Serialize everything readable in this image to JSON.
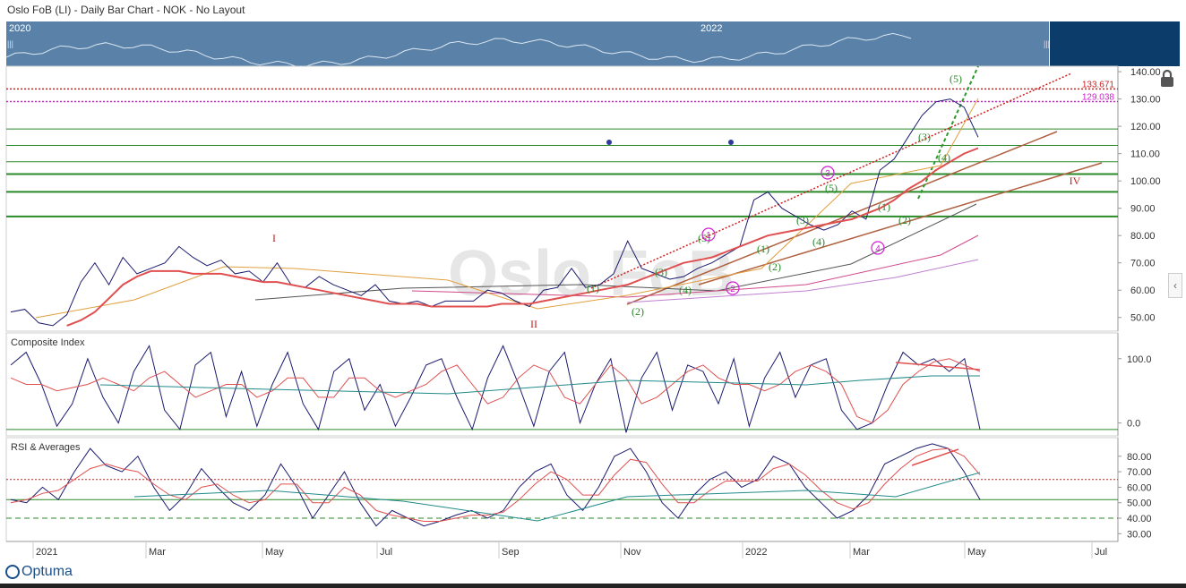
{
  "title": "Oslo FoB (LI) - Daily Bar Chart - NOK - No Layout",
  "navigator": {
    "labels": [
      "2020",
      "2022"
    ]
  },
  "watermark": "Oslo FoB",
  "logo": "Optuma",
  "colors": {
    "price": "#1a1a6e",
    "ma_red": "#e05050",
    "green_line": "#2a8a2a",
    "red_dotted": "#d02020",
    "magenta": "#d020d0",
    "brown": "#b06040"
  },
  "chart_data": [
    {
      "type": "line",
      "panel": "price",
      "ylim": [
        45,
        142
      ],
      "yticks": [
        "140.00",
        "130.00",
        "120.00",
        "110.00",
        "100.00",
        "90.00",
        "80.00",
        "70.00",
        "60.00",
        "50.00"
      ],
      "horizontal_levels": [
        {
          "value": 133.671,
          "label": "133.671",
          "style": "red-dotted"
        },
        {
          "value": 129.038,
          "label": "129.038",
          "style": "magenta-dotted"
        },
        {
          "value": 119,
          "style": "green"
        },
        {
          "value": 113,
          "style": "green"
        },
        {
          "value": 107,
          "style": "green"
        },
        {
          "value": 102.5,
          "style": "green-thick"
        },
        {
          "value": 96,
          "style": "green-thick"
        },
        {
          "value": 87,
          "style": "green-thick"
        }
      ],
      "series": [
        {
          "values": [
            52,
            53,
            48,
            47,
            51,
            63,
            70,
            62,
            72,
            66,
            68,
            70,
            76,
            72,
            69,
            71,
            66,
            67,
            63,
            70,
            62,
            61,
            65,
            62,
            60,
            58,
            62,
            56,
            55,
            56,
            54,
            56,
            56,
            56,
            60,
            59,
            56,
            54,
            60,
            61,
            68,
            61,
            62,
            66,
            78,
            68,
            66,
            64,
            65,
            68,
            70,
            73,
            76,
            93,
            96,
            90,
            87,
            84,
            82,
            84,
            89,
            86,
            104,
            108,
            116,
            124,
            129,
            130,
            127,
            116
          ]
        },
        {
          "values": [
            null,
            null,
            null,
            null,
            47,
            49,
            52,
            57,
            62,
            65,
            67,
            67,
            67,
            66,
            66,
            66,
            65,
            64,
            63,
            63,
            62,
            61,
            60,
            59,
            58,
            57,
            56,
            55,
            55,
            55,
            54,
            54,
            54,
            54,
            54,
            55,
            55,
            55,
            56,
            57,
            58,
            59,
            60,
            61,
            62,
            64,
            66,
            68,
            70,
            71,
            72,
            74,
            76,
            78,
            80,
            81,
            82,
            83,
            84,
            85,
            86,
            88,
            90,
            93,
            97,
            100,
            104,
            107,
            110,
            112
          ]
        }
      ],
      "annotations": [
        {
          "text": "I"
        },
        {
          "text": "II"
        },
        {
          "text": "IV"
        },
        {
          "text": "(1)"
        },
        {
          "text": "(2)"
        },
        {
          "text": "(3)"
        },
        {
          "text": "(4)"
        },
        {
          "text": "(5)"
        },
        {
          "text": "(1)"
        },
        {
          "text": "(2)"
        },
        {
          "text": "(3)"
        },
        {
          "text": "(4)"
        },
        {
          "text": "(5)"
        },
        {
          "text": "(1)"
        },
        {
          "text": "(2)"
        },
        {
          "text": "(3)"
        },
        {
          "text": "(4)"
        },
        {
          "text": "(5)"
        },
        {
          "text": "1"
        },
        {
          "text": "2"
        },
        {
          "text": "3"
        },
        {
          "text": "4"
        }
      ]
    },
    {
      "type": "line",
      "panel": "composite",
      "title": "Composite Index",
      "ylim": [
        -20,
        140
      ],
      "yticks": [
        "100.0",
        "0.0"
      ],
      "reference_line": -10,
      "series": [
        {
          "values": [
            90,
            110,
            60,
            -5,
            30,
            100,
            40,
            0,
            80,
            120,
            20,
            -10,
            90,
            110,
            10,
            80,
            -5,
            60,
            110,
            30,
            -10,
            80,
            100,
            20,
            60,
            -5,
            40,
            90,
            100,
            40,
            -10,
            70,
            120,
            60,
            -5,
            80,
            110,
            0,
            60,
            100,
            -15,
            70,
            110,
            20,
            90,
            80,
            30,
            100,
            -5,
            70,
            110,
            40,
            90,
            100,
            20,
            -10,
            0,
            60,
            110,
            90,
            100,
            80,
            100,
            -10
          ]
        },
        {
          "values": [
            70,
            60,
            60,
            50,
            55,
            60,
            70,
            60,
            50,
            70,
            80,
            60,
            40,
            50,
            60,
            60,
            40,
            50,
            70,
            70,
            40,
            40,
            70,
            70,
            50,
            40,
            50,
            60,
            80,
            90,
            60,
            30,
            40,
            70,
            90,
            80,
            40,
            30,
            60,
            90,
            70,
            30,
            40,
            60,
            80,
            90,
            70,
            60,
            60,
            50,
            60,
            80,
            90,
            80,
            60,
            10,
            0,
            20,
            60,
            80,
            95,
            100,
            90,
            80
          ]
        }
      ]
    },
    {
      "type": "line",
      "panel": "rsi",
      "title": "RSI & Averages",
      "ylim": [
        25,
        92
      ],
      "yticks": [
        "80.00",
        "70.00",
        "60.00",
        "50.00",
        "40.00",
        "30.00"
      ],
      "reference_lines": [
        65,
        52,
        40
      ],
      "series": [
        {
          "values": [
            52,
            50,
            60,
            52,
            70,
            85,
            74,
            70,
            80,
            60,
            45,
            55,
            72,
            60,
            50,
            45,
            55,
            75,
            60,
            40,
            55,
            70,
            50,
            35,
            45,
            40,
            35,
            38,
            42,
            45,
            40,
            45,
            60,
            70,
            75,
            55,
            45,
            60,
            80,
            85,
            70,
            50,
            40,
            55,
            65,
            70,
            60,
            65,
            80,
            75,
            60,
            50,
            40,
            45,
            55,
            75,
            80,
            85,
            88,
            85,
            70,
            52
          ]
        },
        {
          "values": [
            50,
            52,
            56,
            58,
            65,
            72,
            75,
            72,
            70,
            62,
            55,
            52,
            60,
            62,
            55,
            50,
            52,
            62,
            62,
            50,
            50,
            60,
            55,
            45,
            42,
            40,
            38,
            38,
            40,
            42,
            42,
            44,
            52,
            62,
            70,
            65,
            55,
            55,
            68,
            78,
            76,
            62,
            50,
            50,
            58,
            64,
            64,
            64,
            72,
            75,
            68,
            58,
            50,
            46,
            50,
            62,
            72,
            80,
            84,
            85,
            80,
            68
          ]
        }
      ],
      "x_axis": [
        "2021",
        "Mar",
        "May",
        "Jul",
        "Sep",
        "Nov",
        "2022",
        "Mar",
        "May",
        "Jul"
      ]
    }
  ]
}
